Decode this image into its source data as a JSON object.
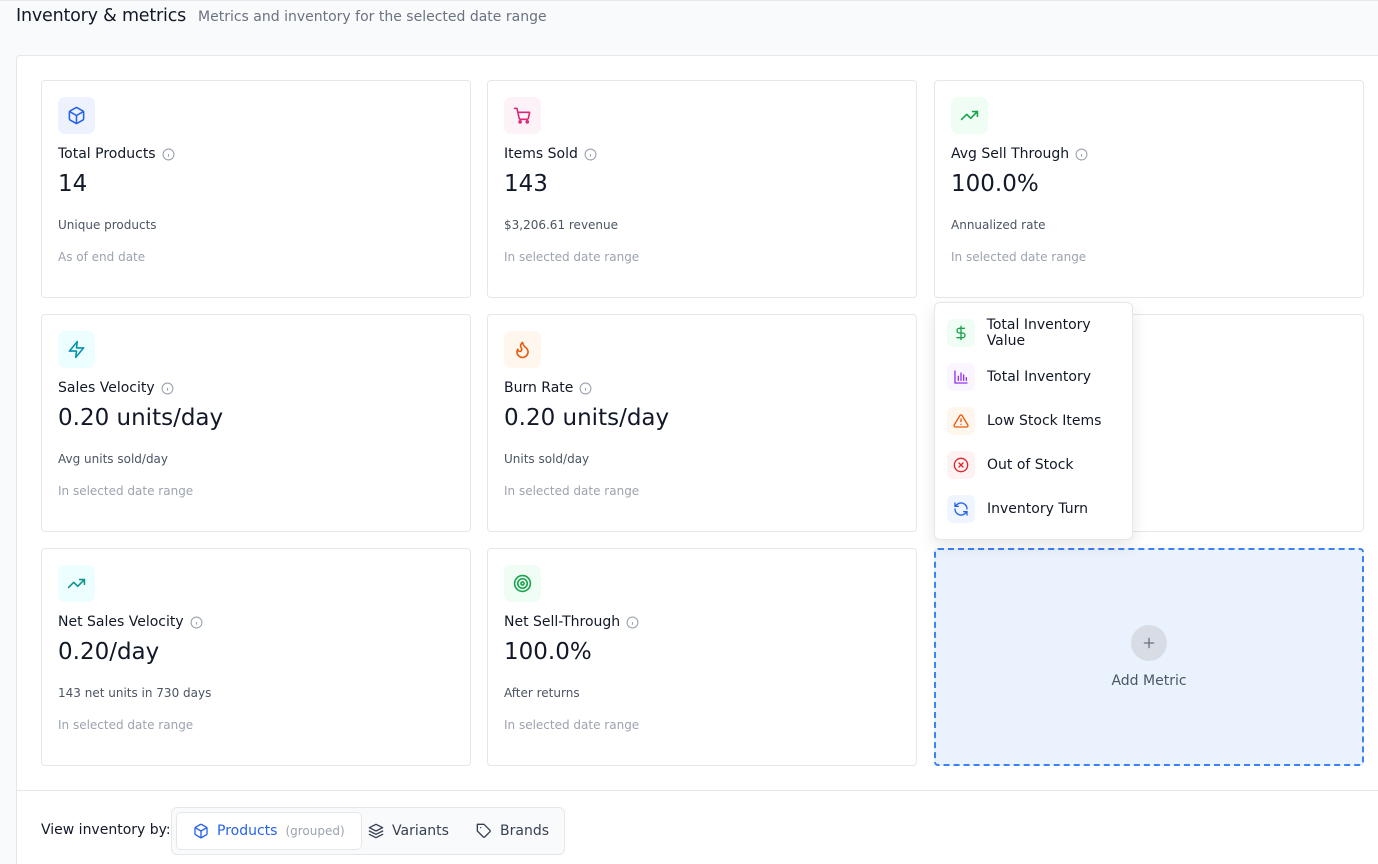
{
  "header": {
    "title": "Inventory & metrics",
    "subtitle": "Metrics and inventory for the selected date range"
  },
  "cards": [
    {
      "title": "Total Products",
      "value": "14",
      "desc": "Unique products",
      "foot": "As of end date",
      "icon": "package-icon",
      "icon_color": "#2563eb",
      "icon_bg": "#eef2ff"
    },
    {
      "title": "Items Sold",
      "value": "143",
      "desc": "$3,206.61 revenue",
      "foot": "In selected date range",
      "icon": "cart-icon",
      "icon_color": "#db2777",
      "icon_bg": "#fdf2f8"
    },
    {
      "title": "Avg Sell Through",
      "value": "100.0%",
      "desc": "Annualized rate",
      "foot": "In selected date range",
      "icon": "trending-up-icon",
      "icon_color": "#16a34a",
      "icon_bg": "#f0fdf4"
    },
    {
      "title": "Sales Velocity",
      "value": "0.20 units/day",
      "desc": "Avg units sold/day",
      "foot": "In selected date range",
      "icon": "zap-icon",
      "icon_color": "#0891b2",
      "icon_bg": "#ecfeff"
    },
    {
      "title": "Burn Rate",
      "value": "0.20 units/day",
      "desc": "Units sold/day",
      "foot": "In selected date range",
      "icon": "flame-icon",
      "icon_color": "#ea580c",
      "icon_bg": "#fff7ed"
    },
    {
      "title": "Net Sales Velocity",
      "value": "0.20/day",
      "desc": "143 net units in 730 days",
      "foot": "In selected date range",
      "icon": "trending-up-icon",
      "icon_color": "#0d9488",
      "icon_bg": "#ecfeff"
    },
    {
      "title": "Net Sell-Through",
      "value": "100.0%",
      "desc": "After returns",
      "foot": "In selected date range",
      "icon": "target-icon",
      "icon_color": "#16a34a",
      "icon_bg": "#f0fdf4"
    }
  ],
  "dropdown": {
    "items": [
      {
        "label": "Total Inventory Value",
        "icon": "dollar-icon",
        "color": "#16a34a",
        "bg": "#f0fdf4"
      },
      {
        "label": "Total Inventory",
        "icon": "bar-chart-icon",
        "color": "#9333ea",
        "bg": "#faf5ff"
      },
      {
        "label": "Low Stock Items",
        "icon": "alert-triangle-icon",
        "color": "#ea580c",
        "bg": "#fff7ed"
      },
      {
        "label": "Out of Stock",
        "icon": "x-circle-icon",
        "color": "#dc2626",
        "bg": "#fef2f2"
      },
      {
        "label": "Inventory Turn",
        "icon": "refresh-icon",
        "color": "#2563eb",
        "bg": "#eff6ff"
      }
    ]
  },
  "add_metric": {
    "label": "Add Metric"
  },
  "view_by": {
    "label": "View inventory by:",
    "options": [
      {
        "label": "Products",
        "note": "(grouped)",
        "active": true,
        "icon": "package-icon"
      },
      {
        "label": "Variants",
        "active": false,
        "icon": "layers-icon"
      },
      {
        "label": "Brands",
        "active": false,
        "icon": "tag-icon"
      }
    ]
  }
}
